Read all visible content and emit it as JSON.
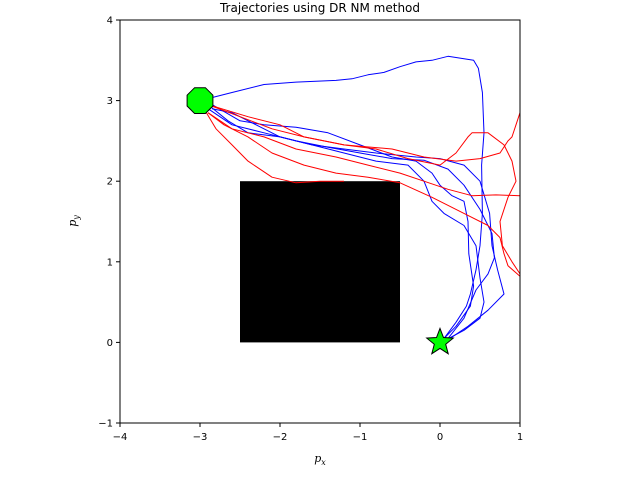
{
  "chart_data": {
    "type": "line",
    "title": "Trajectories using DR NM method",
    "xlabel": "p_x",
    "ylabel": "p_y",
    "xlim": [
      -4,
      1
    ],
    "ylim": [
      -1,
      4
    ],
    "xticks": [
      -4,
      -3,
      -2,
      -1,
      0,
      1
    ],
    "yticks": [
      -1,
      0,
      1,
      2,
      3,
      4
    ],
    "grid": false,
    "obstacle": {
      "x": [
        -2.5,
        -0.5
      ],
      "y": [
        0,
        2
      ],
      "color": "#000000"
    },
    "start_marker": {
      "shape": "octagon",
      "x": -3,
      "y": 3,
      "color": "#00ff00"
    },
    "goal_marker": {
      "shape": "star",
      "x": 0,
      "y": 0,
      "color": "#00ff00"
    },
    "series": [
      {
        "color": "#0000ff",
        "points": [
          [
            -3,
            3
          ],
          [
            -2.6,
            3.1
          ],
          [
            -2.2,
            3.2
          ],
          [
            -1.8,
            3.23
          ],
          [
            -1.3,
            3.25
          ],
          [
            -1.1,
            3.27
          ],
          [
            -0.9,
            3.32
          ],
          [
            -0.7,
            3.35
          ],
          [
            -0.5,
            3.42
          ],
          [
            -0.3,
            3.48
          ],
          [
            -0.1,
            3.5
          ],
          [
            0.1,
            3.55
          ],
          [
            0.3,
            3.52
          ],
          [
            0.42,
            3.5
          ],
          [
            0.48,
            3.4
          ],
          [
            0.53,
            3.1
          ],
          [
            0.55,
            2.6
          ],
          [
            0.52,
            2.2
          ],
          [
            0.53,
            1.6
          ],
          [
            0.5,
            1.2
          ],
          [
            0.45,
            0.9
          ],
          [
            0.38,
            0.6
          ],
          [
            0.33,
            0.45
          ],
          [
            0.2,
            0.25
          ],
          [
            0.05,
            0.05
          ]
        ]
      },
      {
        "color": "#0000ff",
        "points": [
          [
            -2.85,
            2.95
          ],
          [
            -2.5,
            2.75
          ],
          [
            -2.2,
            2.7
          ],
          [
            -1.8,
            2.67
          ],
          [
            -1.4,
            2.6
          ],
          [
            -1.0,
            2.45
          ],
          [
            -0.6,
            2.3
          ],
          [
            -0.3,
            2.25
          ],
          [
            -0.1,
            2.1
          ],
          [
            0.0,
            1.95
          ],
          [
            0.15,
            1.82
          ],
          [
            0.3,
            1.75
          ],
          [
            0.35,
            1.5
          ],
          [
            0.36,
            1.1
          ],
          [
            0.42,
            0.7
          ],
          [
            0.38,
            0.45
          ],
          [
            0.2,
            0.2
          ],
          [
            0.05,
            0.05
          ]
        ]
      },
      {
        "color": "#0000ff",
        "points": [
          [
            -2.85,
            2.9
          ],
          [
            -2.6,
            2.85
          ],
          [
            -2.3,
            2.7
          ],
          [
            -2.0,
            2.55
          ],
          [
            -1.6,
            2.45
          ],
          [
            -1.2,
            2.35
          ],
          [
            -0.8,
            2.25
          ],
          [
            -0.4,
            2.2
          ],
          [
            -0.2,
            2.0
          ],
          [
            -0.1,
            1.75
          ],
          [
            0.05,
            1.6
          ],
          [
            0.3,
            1.45
          ],
          [
            0.45,
            1.2
          ],
          [
            0.5,
            0.8
          ],
          [
            0.55,
            0.5
          ],
          [
            0.5,
            0.3
          ],
          [
            0.3,
            0.15
          ],
          [
            0.05,
            0.02
          ]
        ]
      },
      {
        "color": "#0000ff",
        "points": [
          [
            -2.9,
            2.9
          ],
          [
            -2.6,
            2.7
          ],
          [
            -2.2,
            2.6
          ],
          [
            -1.8,
            2.5
          ],
          [
            -1.4,
            2.42
          ],
          [
            -1.0,
            2.35
          ],
          [
            -0.6,
            2.28
          ],
          [
            -0.2,
            2.26
          ],
          [
            0.1,
            2.15
          ],
          [
            0.3,
            1.95
          ],
          [
            0.5,
            1.65
          ],
          [
            0.65,
            1.35
          ],
          [
            0.68,
            1.05
          ],
          [
            0.6,
            0.85
          ],
          [
            0.45,
            0.65
          ],
          [
            0.3,
            0.3
          ],
          [
            0.1,
            0.05
          ]
        ]
      },
      {
        "color": "#0000ff",
        "points": [
          [
            -2.9,
            2.95
          ],
          [
            -2.65,
            2.75
          ],
          [
            -2.4,
            2.6
          ],
          [
            -2.0,
            2.55
          ],
          [
            -1.6,
            2.45
          ],
          [
            -1.2,
            2.4
          ],
          [
            -0.8,
            2.35
          ],
          [
            -0.3,
            2.3
          ],
          [
            0.0,
            2.28
          ],
          [
            0.3,
            2.2
          ],
          [
            0.5,
            2.0
          ],
          [
            0.62,
            1.6
          ],
          [
            0.65,
            1.2
          ],
          [
            0.72,
            0.9
          ],
          [
            0.8,
            0.6
          ],
          [
            0.6,
            0.4
          ],
          [
            0.35,
            0.2
          ],
          [
            0.05,
            0.0
          ]
        ]
      },
      {
        "color": "#ff0000",
        "points": [
          [
            -2.9,
            2.95
          ],
          [
            -2.4,
            2.8
          ],
          [
            -2.0,
            2.7
          ],
          [
            -1.7,
            2.55
          ],
          [
            -1.2,
            2.45
          ],
          [
            -0.6,
            2.4
          ],
          [
            -0.2,
            2.3
          ],
          [
            0.2,
            2.25
          ],
          [
            0.5,
            2.28
          ],
          [
            0.75,
            2.35
          ],
          [
            0.85,
            2.5
          ],
          [
            0.9,
            2.55
          ],
          [
            0.95,
            2.7
          ],
          [
            1.0,
            2.85
          ]
        ]
      },
      {
        "color": "#ff0000",
        "points": [
          [
            -2.9,
            2.85
          ],
          [
            -2.6,
            2.65
          ],
          [
            -2.2,
            2.55
          ],
          [
            -1.8,
            2.4
          ],
          [
            -1.3,
            2.3
          ],
          [
            -0.9,
            2.2
          ],
          [
            -0.5,
            2.1
          ],
          [
            -0.2,
            2.0
          ],
          [
            0.1,
            1.9
          ],
          [
            0.4,
            1.82
          ],
          [
            0.7,
            1.83
          ],
          [
            1.0,
            1.82
          ]
        ]
      },
      {
        "color": "#ff0000",
        "points": [
          [
            -2.95,
            2.9
          ],
          [
            -2.8,
            2.65
          ],
          [
            -2.6,
            2.45
          ],
          [
            -2.4,
            2.25
          ],
          [
            -2.1,
            2.05
          ],
          [
            -1.8,
            1.98
          ],
          [
            -1.5,
            2.0
          ],
          [
            -1.2,
            2.0
          ]
        ]
      },
      {
        "color": "#ff0000",
        "points": [
          [
            -2.9,
            2.85
          ],
          [
            -2.7,
            2.7
          ],
          [
            -2.4,
            2.55
          ],
          [
            -2.1,
            2.35
          ],
          [
            -1.7,
            2.2
          ],
          [
            -1.3,
            2.1
          ],
          [
            -0.9,
            2.05
          ],
          [
            -0.5,
            1.98
          ],
          [
            -0.1,
            1.8
          ],
          [
            0.3,
            1.6
          ],
          [
            0.6,
            1.45
          ],
          [
            0.75,
            1.3
          ],
          [
            0.8,
            1.1
          ],
          [
            0.85,
            0.95
          ],
          [
            1.0,
            0.82
          ]
        ]
      },
      {
        "color": "#ff0000",
        "points": [
          [
            -2.9,
            2.95
          ],
          [
            -2.5,
            2.8
          ],
          [
            -2.1,
            2.65
          ],
          [
            -1.7,
            2.55
          ],
          [
            -1.2,
            2.45
          ],
          [
            -0.8,
            2.4
          ],
          [
            -0.4,
            2.28
          ],
          [
            0.0,
            2.2
          ],
          [
            0.2,
            2.35
          ],
          [
            0.35,
            2.55
          ],
          [
            0.4,
            2.6
          ],
          [
            0.6,
            2.6
          ],
          [
            0.8,
            2.45
          ],
          [
            0.9,
            2.25
          ],
          [
            0.95,
            2.0
          ],
          [
            0.85,
            1.8
          ],
          [
            0.75,
            1.5
          ],
          [
            0.78,
            1.2
          ],
          [
            0.9,
            1.0
          ],
          [
            1.0,
            0.85
          ]
        ]
      }
    ]
  }
}
